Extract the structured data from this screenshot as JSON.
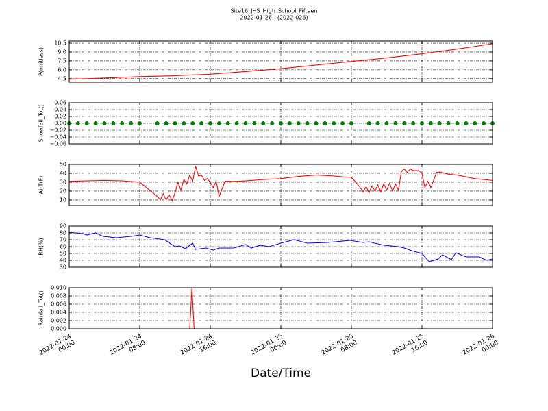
{
  "chart_data": [
    {
      "type": "line",
      "title": "Site16_JHS_High_School_Fifteen",
      "subtitle": "2022-01-26 - (2022-026)",
      "ylabel": "P(unitless)",
      "color": "#ff0000",
      "grid": true,
      "x": [
        "2022-01-24 00:00",
        "2022-01-24 04:00",
        "2022-01-24 08:00",
        "2022-01-24 12:00",
        "2022-01-24 16:00",
        "2022-01-24 20:00",
        "2022-01-25 00:00",
        "2022-01-25 04:00",
        "2022-01-25 08:00",
        "2022-01-25 12:00",
        "2022-01-25 16:00",
        "2022-01-25 20:00",
        "2022-01-26 00:00"
      ],
      "values": [
        4.4,
        4.6,
        4.85,
        5.0,
        5.25,
        5.7,
        6.2,
        6.8,
        7.4,
        8.0,
        8.7,
        9.5,
        10.4
      ],
      "ylim": [
        3.9,
        10.85
      ],
      "yticks": [
        4.5,
        {
          "value": 6,
          "label": "6.0"
        },
        7.5,
        {
          "value": 9,
          "label": "9.0"
        },
        10.5
      ]
    },
    {
      "type": "scatter",
      "ylabel": "Snowfall_Tot()",
      "color": "#008000",
      "grid": true,
      "x": [
        "2022-01-24 00:00",
        "2022-01-24 01:00",
        "2022-01-24 02:00",
        "2022-01-24 03:00",
        "2022-01-24 04:00",
        "2022-01-24 05:00",
        "2022-01-24 06:00",
        "2022-01-24 07:00",
        "2022-01-24 08:00",
        "2022-01-24 10:00",
        "2022-01-24 11:00",
        "2022-01-24 12:00",
        "2022-01-24 13:00",
        "2022-01-24 14:00",
        "2022-01-24 15:00",
        "2022-01-24 16:00",
        "2022-01-24 17:00",
        "2022-01-24 18:00",
        "2022-01-24 19:00",
        "2022-01-24 20:00",
        "2022-01-24 21:00",
        "2022-01-24 22:00",
        "2022-01-24 23:00",
        "2022-01-25 00:00",
        "2022-01-25 01:00",
        "2022-01-25 02:00",
        "2022-01-25 03:00",
        "2022-01-25 04:00",
        "2022-01-25 05:00",
        "2022-01-25 06:00",
        "2022-01-25 07:00",
        "2022-01-25 08:00",
        "2022-01-25 10:00",
        "2022-01-25 11:00",
        "2022-01-25 12:00",
        "2022-01-25 13:00",
        "2022-01-25 14:00",
        "2022-01-25 15:00",
        "2022-01-25 16:00",
        "2022-01-25 17:00",
        "2022-01-25 18:00",
        "2022-01-25 19:00",
        "2022-01-25 20:00",
        "2022-01-25 21:00",
        "2022-01-25 22:00",
        "2022-01-25 23:00",
        "2022-01-26 00:00"
      ],
      "values": [
        0,
        0,
        0,
        0,
        0,
        0,
        0,
        0,
        0,
        0,
        0,
        0,
        0,
        0,
        0,
        0,
        0,
        0,
        0,
        0,
        0,
        0,
        0,
        0,
        0,
        0,
        0,
        0,
        0,
        0,
        0,
        0,
        0,
        0,
        0,
        0,
        0,
        0,
        0,
        0,
        0,
        0,
        0,
        0,
        0,
        0,
        0
      ],
      "ylim": [
        -0.06,
        0.06
      ],
      "yticks": [
        {
          "value": -0.06,
          "label": "−0.06"
        },
        {
          "value": -0.04,
          "label": "−0.04"
        },
        {
          "value": -0.02,
          "label": "−0.02"
        },
        {
          "value": 0,
          "label": "0.00"
        },
        0.02,
        0.04,
        0.06
      ]
    },
    {
      "type": "line",
      "ylabel": "AirT(F)",
      "color": "#ff0000",
      "grid": true,
      "x": [
        "2022-01-24 00:00",
        "2022-01-24 02:00",
        "2022-01-24 04:00",
        "2022-01-24 06:00",
        "2022-01-24 08:00",
        "2022-01-24 09:00",
        "2022-01-24 10:00",
        "2022-01-24 10:20",
        "2022-01-24 10:40",
        "2022-01-24 11:00",
        "2022-01-24 11:20",
        "2022-01-24 11:40",
        "2022-01-24 12:00",
        "2022-01-24 12:20",
        "2022-01-24 12:40",
        "2022-01-24 13:00",
        "2022-01-24 13:20",
        "2022-01-24 13:40",
        "2022-01-24 14:00",
        "2022-01-24 14:20",
        "2022-01-24 14:40",
        "2022-01-24 15:00",
        "2022-01-24 15:20",
        "2022-01-24 15:40",
        "2022-01-24 16:00",
        "2022-01-24 16:20",
        "2022-01-24 16:40",
        "2022-01-24 17:00",
        "2022-01-24 17:40",
        "2022-01-24 19:00",
        "2022-01-24 20:00",
        "2022-01-24 22:00",
        "2022-01-25 00:00",
        "2022-01-25 02:00",
        "2022-01-25 04:00",
        "2022-01-25 06:00",
        "2022-01-25 07:00",
        "2022-01-25 08:00",
        "2022-01-25 08:30",
        "2022-01-25 09:00",
        "2022-01-25 09:20",
        "2022-01-25 09:40",
        "2022-01-25 10:00",
        "2022-01-25 10:20",
        "2022-01-25 10:40",
        "2022-01-25 11:00",
        "2022-01-25 11:20",
        "2022-01-25 11:40",
        "2022-01-25 12:00",
        "2022-01-25 12:20",
        "2022-01-25 12:40",
        "2022-01-25 13:00",
        "2022-01-25 13:20",
        "2022-01-25 13:40",
        "2022-01-25 14:00",
        "2022-01-25 14:20",
        "2022-01-25 14:40",
        "2022-01-25 15:00",
        "2022-01-25 15:40",
        "2022-01-25 16:00",
        "2022-01-25 16:20",
        "2022-01-25 16:40",
        "2022-01-25 17:00",
        "2022-01-25 17:40",
        "2022-01-25 18:00",
        "2022-01-25 19:00",
        "2022-01-25 20:00",
        "2022-01-25 21:00",
        "2022-01-25 22:00",
        "2022-01-26 00:00"
      ],
      "values": [
        31,
        31.5,
        32,
        31.5,
        30,
        22,
        14,
        10,
        17,
        10,
        16,
        9,
        18,
        30,
        21,
        33,
        28,
        38,
        31,
        48,
        37,
        38,
        32,
        34,
        30,
        24,
        31,
        14,
        31,
        31,
        31.5,
        33,
        34,
        36.5,
        38,
        37,
        36,
        35.5,
        30,
        24,
        19,
        25,
        18,
        26,
        20,
        27,
        19,
        28,
        21,
        29,
        20,
        28,
        21,
        42,
        45,
        41,
        45,
        43,
        43,
        40,
        24,
        31,
        24,
        41,
        41.5,
        39,
        38,
        36,
        34,
        32
      ],
      "ylim": [
        3.8,
        50
      ],
      "yticks": [
        10,
        20,
        30,
        40,
        50
      ]
    },
    {
      "type": "line",
      "ylabel": "RH(%)",
      "color": "#0000ff",
      "grid": true,
      "x": [
        "2022-01-24 00:00",
        "2022-01-24 00:40",
        "2022-01-24 01:30",
        "2022-01-24 02:00",
        "2022-01-24 03:00",
        "2022-01-24 03:50",
        "2022-01-24 05:20",
        "2022-01-24 07:00",
        "2022-01-24 08:00",
        "2022-01-24 09:10",
        "2022-01-24 10:50",
        "2022-01-24 11:30",
        "2022-01-24 12:00",
        "2022-01-24 12:30",
        "2022-01-24 13:10",
        "2022-01-24 14:00",
        "2022-01-24 14:20",
        "2022-01-24 15:30",
        "2022-01-24 16:20",
        "2022-01-24 17:00",
        "2022-01-24 18:40",
        "2022-01-24 20:00",
        "2022-01-24 20:40",
        "2022-01-24 21:40",
        "2022-01-24 22:40",
        "2022-01-25 00:00",
        "2022-01-25 01:30",
        "2022-01-25 03:00",
        "2022-01-25 05:20",
        "2022-01-25 07:50",
        "2022-01-25 09:20",
        "2022-01-25 10:00",
        "2022-01-25 11:40",
        "2022-01-25 13:20",
        "2022-01-25 14:00",
        "2022-01-25 14:50",
        "2022-01-25 16:00",
        "2022-01-25 16:20",
        "2022-01-25 16:50",
        "2022-01-25 17:50",
        "2022-01-25 18:20",
        "2022-01-25 19:20",
        "2022-01-25 19:50",
        "2022-01-25 21:00",
        "2022-01-25 22:30",
        "2022-01-25 23:20",
        "2022-01-26 00:00"
      ],
      "values": [
        81,
        80,
        79,
        77,
        80,
        75,
        73,
        75,
        77,
        73,
        70,
        64,
        60,
        61,
        57,
        65,
        56,
        58,
        55,
        58,
        58,
        63,
        58,
        62,
        60,
        65,
        70,
        65,
        66,
        69,
        66,
        67,
        62,
        60,
        58,
        54,
        50,
        45,
        38,
        42,
        48,
        41,
        51,
        45,
        45,
        40,
        42
      ],
      "ylim": [
        30,
        90
      ],
      "yticks": [
        30,
        40,
        50,
        60,
        70,
        80,
        90
      ]
    },
    {
      "type": "line",
      "ylabel": "Rainfall_Tot()",
      "color": "#ff0000",
      "grid": true,
      "xlabel": "Date/Time",
      "x": [
        "2022-01-24 00:00",
        "2022-01-24 13:40",
        "2022-01-24 13:55",
        "2022-01-24 14:10",
        "2022-01-26 00:00"
      ],
      "values": [
        0,
        0,
        0.01,
        0,
        0
      ],
      "ylim": [
        0,
        0.01
      ],
      "yticks": [
        {
          "value": 0,
          "label": "0.000"
        },
        {
          "value": 0.002,
          "label": "0.002"
        },
        {
          "value": 0.004,
          "label": "0.004"
        },
        {
          "value": 0.006,
          "label": "0.006"
        },
        {
          "value": 0.008,
          "label": "0.008"
        },
        {
          "value": 0.01,
          "label": "0.010"
        }
      ],
      "xlim": [
        "2022-01-24 00:00",
        "2022-01-26 00:00"
      ],
      "xticks": [
        "2022-01-24 00:00",
        "2022-01-24 08:00",
        "2022-01-24 16:00",
        "2022-01-25 00:00",
        "2022-01-25 08:00",
        "2022-01-25 16:00",
        "2022-01-26 00:00"
      ]
    }
  ]
}
